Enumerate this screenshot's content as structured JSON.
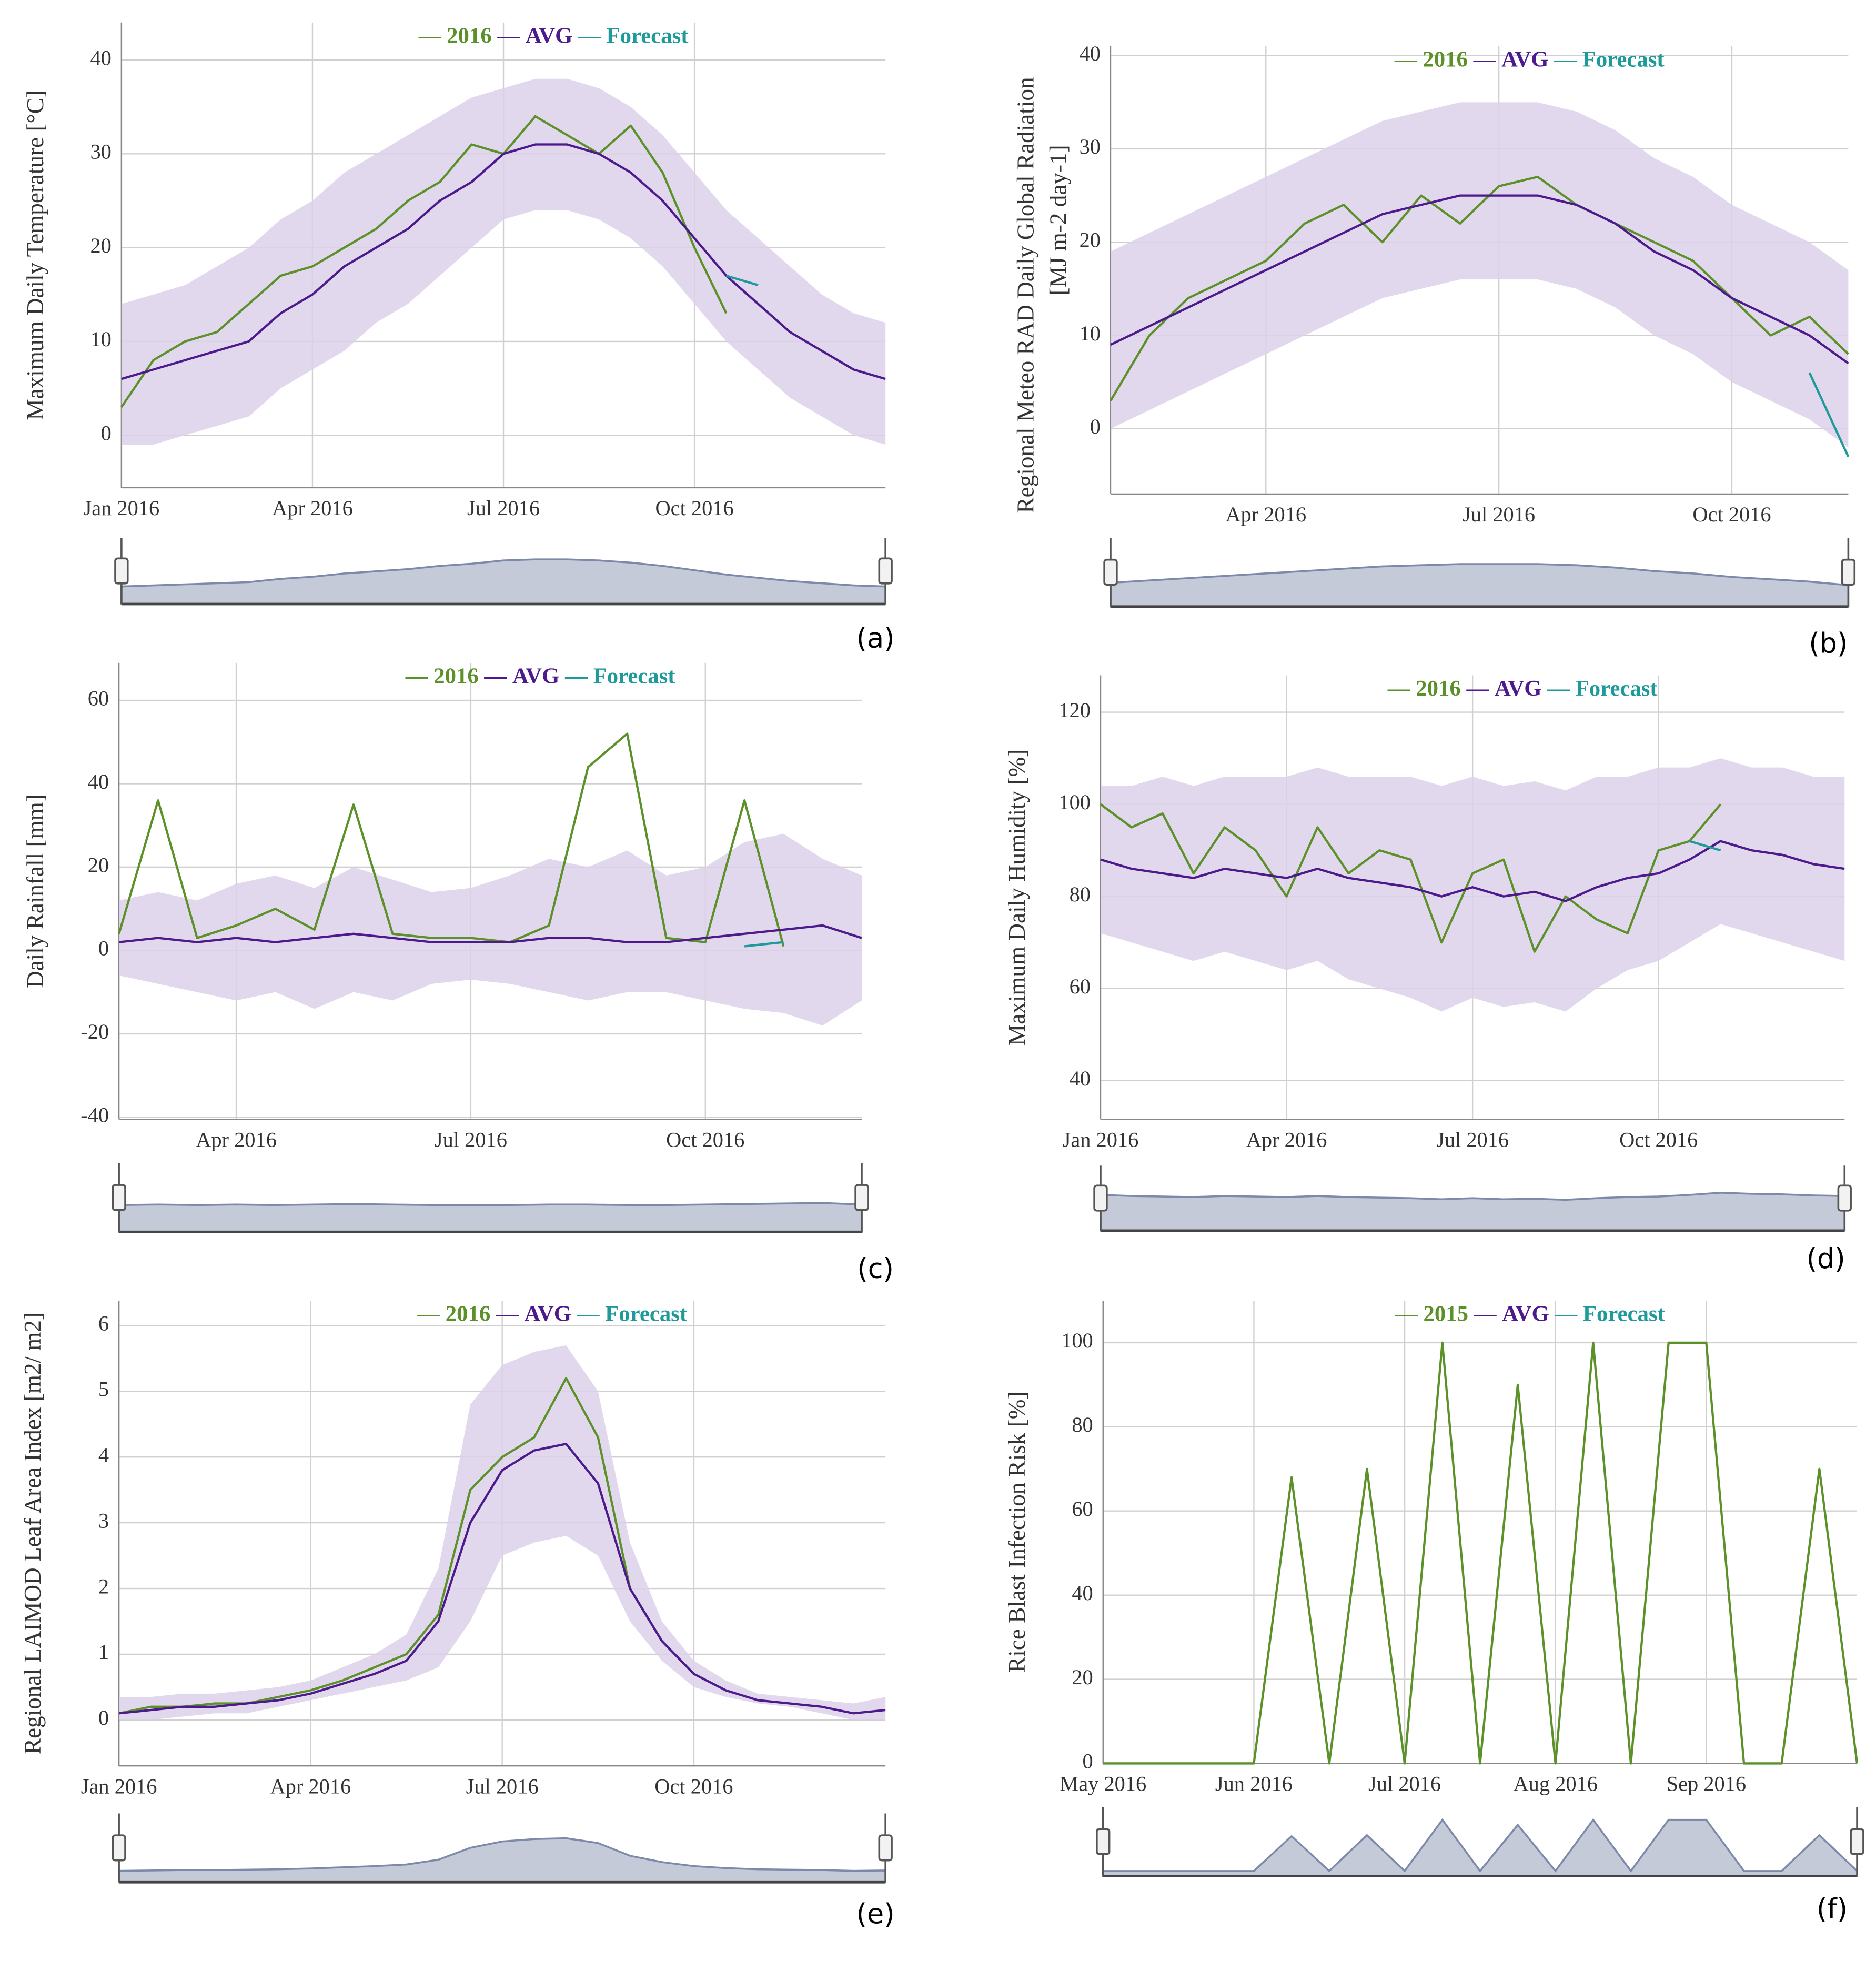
{
  "chart_data": [
    {
      "type": "line",
      "label": "(a)",
      "ylabel": [
        "Maximum Daily Temperature [°C]"
      ],
      "categories": [
        "Jan 2016",
        null,
        null,
        null,
        null,
        null,
        "Apr 2016",
        null,
        null,
        null,
        null,
        null,
        "Jul 2016",
        null,
        null,
        null,
        null,
        null,
        "Oct 2016",
        null,
        null,
        null,
        null,
        null,
        null
      ],
      "ylim": [
        -5.6,
        44
      ],
      "yticks": [
        0,
        10,
        20,
        30,
        40
      ],
      "grid": true,
      "band": {
        "color": "#ddd1ea",
        "low": [
          -1,
          -1,
          0,
          1,
          2,
          5,
          7,
          9,
          12,
          14,
          17,
          20,
          23,
          24,
          24,
          23,
          21,
          18,
          14,
          10,
          7,
          4,
          2,
          0,
          -1
        ],
        "high": [
          14,
          15,
          16,
          18,
          20,
          23,
          25,
          28,
          30,
          32,
          34,
          36,
          37,
          38,
          38,
          37,
          35,
          32,
          28,
          24,
          21,
          18,
          15,
          13,
          12
        ]
      },
      "series": [
        {
          "name": "2016",
          "color": "#5b9128",
          "values": [
            3,
            8,
            10,
            11,
            14,
            17,
            18,
            20,
            22,
            25,
            27,
            31,
            30,
            34,
            32,
            30,
            33,
            28,
            20,
            13,
            null,
            null,
            null,
            null,
            null
          ]
        },
        {
          "name": "AVG",
          "color": "#4c1a8c",
          "values": [
            6,
            7,
            8,
            9,
            10,
            13,
            15,
            18,
            20,
            22,
            25,
            27,
            30,
            31,
            31,
            30,
            28,
            25,
            21,
            17,
            14,
            11,
            9,
            7,
            6
          ]
        },
        {
          "name": "Forecast",
          "color": "#1e9a9a",
          "values": [
            null,
            null,
            null,
            null,
            null,
            null,
            null,
            null,
            null,
            null,
            null,
            null,
            null,
            null,
            null,
            null,
            null,
            null,
            null,
            17,
            16,
            null,
            null,
            null,
            null
          ]
        }
      ]
    },
    {
      "type": "line",
      "label": "(b)",
      "ylabel": [
        "Regional Meteo RAD Daily Global Radiation",
        "[MJ m-2 day-1]"
      ],
      "categories": [
        null,
        null,
        null,
        null,
        "Apr 2016",
        null,
        null,
        null,
        null,
        null,
        "Jul 2016",
        null,
        null,
        null,
        null,
        null,
        "Oct 2016",
        null,
        null,
        null
      ],
      "ylim": [
        -7,
        41
      ],
      "yticks": [
        0,
        10,
        20,
        30,
        40
      ],
      "grid": true,
      "band": {
        "color": "#ddd1ea",
        "low": [
          0,
          2,
          4,
          6,
          8,
          10,
          12,
          14,
          15,
          16,
          16,
          16,
          15,
          13,
          10,
          8,
          5,
          3,
          1,
          -2
        ],
        "high": [
          19,
          21,
          23,
          25,
          27,
          29,
          31,
          33,
          34,
          35,
          35,
          35,
          34,
          32,
          29,
          27,
          24,
          22,
          20,
          17
        ]
      },
      "series": [
        {
          "name": "2016",
          "color": "#5b9128",
          "values": [
            3,
            10,
            14,
            16,
            18,
            22,
            24,
            20,
            25,
            22,
            26,
            27,
            24,
            22,
            20,
            18,
            14,
            10,
            12,
            8
          ]
        },
        {
          "name": "AVG",
          "color": "#4c1a8c",
          "values": [
            9,
            11,
            13,
            15,
            17,
            19,
            21,
            23,
            24,
            25,
            25,
            25,
            24,
            22,
            19,
            17,
            14,
            12,
            10,
            7
          ]
        },
        {
          "name": "Forecast",
          "color": "#1e9a9a",
          "values": [
            null,
            null,
            null,
            null,
            null,
            null,
            null,
            null,
            null,
            null,
            null,
            null,
            null,
            null,
            null,
            null,
            null,
            null,
            6,
            -3
          ]
        }
      ]
    },
    {
      "type": "line",
      "label": "(c)",
      "ylabel": [
        "Daily Rainfall [mm]"
      ],
      "categories": [
        null,
        null,
        null,
        "Apr 2016",
        null,
        null,
        null,
        null,
        null,
        "Jul 2016",
        null,
        null,
        null,
        null,
        null,
        "Oct 2016",
        null,
        null,
        null,
        null
      ],
      "ylim": [
        -40.5,
        69
      ],
      "yticks": [
        -40,
        -20,
        0,
        20,
        40,
        60
      ],
      "grid": true,
      "band": {
        "color": "#ddd1ea",
        "low": [
          -6,
          -8,
          -10,
          -12,
          -10,
          -14,
          -10,
          -12,
          -8,
          -7,
          -8,
          -10,
          -12,
          -10,
          -10,
          -12,
          -14,
          -15,
          -18,
          -12
        ],
        "high": [
          12,
          14,
          12,
          16,
          18,
          15,
          20,
          17,
          14,
          15,
          18,
          22,
          20,
          24,
          18,
          20,
          26,
          28,
          22,
          18
        ]
      },
      "series": [
        {
          "name": "2016",
          "color": "#5b9128",
          "values": [
            4,
            36,
            3,
            6,
            10,
            5,
            35,
            4,
            3,
            3,
            2,
            6,
            44,
            52,
            3,
            2,
            36,
            1,
            null,
            null
          ]
        },
        {
          "name": "AVG",
          "color": "#4c1a8c",
          "values": [
            2,
            3,
            2,
            3,
            2,
            3,
            4,
            3,
            2,
            2,
            2,
            3,
            3,
            2,
            2,
            3,
            4,
            5,
            6,
            3
          ]
        },
        {
          "name": "Forecast",
          "color": "#1e9a9a",
          "values": [
            null,
            null,
            null,
            null,
            null,
            null,
            null,
            null,
            null,
            null,
            null,
            null,
            null,
            null,
            null,
            null,
            1,
            2,
            null,
            null
          ]
        }
      ]
    },
    {
      "type": "line",
      "label": "(d)",
      "ylabel": [
        "Maximum Daily Humidity [%]"
      ],
      "categories": [
        "Jan 2016",
        null,
        null,
        null,
        null,
        null,
        "Apr 2016",
        null,
        null,
        null,
        null,
        null,
        "Jul 2016",
        null,
        null,
        null,
        null,
        null,
        "Oct 2016",
        null,
        null,
        null,
        null,
        null,
        null
      ],
      "ylim": [
        31.6,
        128
      ],
      "yticks": [
        40,
        60,
        80,
        100,
        120
      ],
      "grid": true,
      "band": {
        "color": "#ddd1ea",
        "low": [
          72,
          70,
          68,
          66,
          68,
          66,
          64,
          66,
          62,
          60,
          58,
          55,
          58,
          56,
          57,
          55,
          60,
          64,
          66,
          70,
          74,
          72,
          70,
          68,
          66
        ],
        "high": [
          104,
          104,
          106,
          104,
          106,
          106,
          106,
          108,
          106,
          106,
          106,
          104,
          106,
          104,
          105,
          103,
          106,
          106,
          108,
          108,
          110,
          108,
          108,
          106,
          106
        ]
      },
      "series": [
        {
          "name": "2016",
          "color": "#5b9128",
          "values": [
            100,
            95,
            98,
            85,
            95,
            90,
            80,
            95,
            85,
            90,
            88,
            70,
            85,
            88,
            68,
            80,
            75,
            72,
            90,
            92,
            100,
            null,
            null,
            null,
            null
          ]
        },
        {
          "name": "AVG",
          "color": "#4c1a8c",
          "values": [
            88,
            86,
            85,
            84,
            86,
            85,
            84,
            86,
            84,
            83,
            82,
            80,
            82,
            80,
            81,
            79,
            82,
            84,
            85,
            88,
            92,
            90,
            89,
            87,
            86
          ]
        },
        {
          "name": "Forecast",
          "color": "#1e9a9a",
          "values": [
            null,
            null,
            null,
            null,
            null,
            null,
            null,
            null,
            null,
            null,
            null,
            null,
            null,
            null,
            null,
            null,
            null,
            null,
            null,
            92,
            90,
            null,
            null,
            null,
            null
          ]
        }
      ]
    },
    {
      "type": "line",
      "label": "(e)",
      "ylabel": [
        "Regional LAIMOD Leaf Area Index [m2/ m2]"
      ],
      "categories": [
        "Jan 2016",
        null,
        null,
        null,
        null,
        null,
        "Apr 2016",
        null,
        null,
        null,
        null,
        null,
        "Jul 2016",
        null,
        null,
        null,
        null,
        null,
        "Oct 2016",
        null,
        null,
        null,
        null,
        null,
        null
      ],
      "ylim": [
        -0.7,
        6.38
      ],
      "yticks": [
        0,
        1,
        2,
        3,
        4,
        5,
        6
      ],
      "grid": true,
      "band": {
        "color": "#ddd1ea",
        "low": [
          0,
          0,
          0.05,
          0.1,
          0.1,
          0.2,
          0.3,
          0.4,
          0.5,
          0.6,
          0.8,
          1.5,
          2.5,
          2.7,
          2.8,
          2.5,
          1.5,
          0.9,
          0.5,
          0.35,
          0.25,
          0.2,
          0.1,
          0,
          0
        ],
        "high": [
          0.35,
          0.35,
          0.4,
          0.4,
          0.45,
          0.5,
          0.6,
          0.8,
          1.0,
          1.3,
          2.3,
          4.8,
          5.4,
          5.6,
          5.7,
          5.0,
          2.7,
          1.5,
          0.9,
          0.6,
          0.4,
          0.35,
          0.3,
          0.25,
          0.35
        ]
      },
      "series": [
        {
          "name": "2016",
          "color": "#5b9128",
          "values": [
            0.1,
            0.2,
            0.2,
            0.25,
            0.25,
            0.35,
            0.45,
            0.6,
            0.8,
            1.0,
            1.6,
            3.5,
            4.0,
            4.3,
            5.2,
            4.3,
            2.0,
            1.2,
            0.7,
            null,
            null,
            null,
            null,
            null,
            null
          ]
        },
        {
          "name": "AVG",
          "color": "#4c1a8c",
          "values": [
            0.1,
            0.15,
            0.2,
            0.2,
            0.25,
            0.3,
            0.4,
            0.55,
            0.7,
            0.9,
            1.5,
            3.0,
            3.8,
            4.1,
            4.2,
            3.6,
            2.0,
            1.2,
            0.7,
            0.45,
            0.3,
            0.25,
            0.2,
            0.1,
            0.15
          ]
        },
        {
          "name": "Forecast",
          "color": "#1e9a9a",
          "values": [
            null,
            null,
            null,
            null,
            null,
            null,
            null,
            null,
            null,
            null,
            null,
            null,
            null,
            null,
            null,
            null,
            null,
            null,
            null,
            null,
            null,
            null,
            null,
            null,
            null
          ]
        }
      ]
    },
    {
      "type": "line",
      "label": "(f)",
      "ylabel": [
        "Rice Blast Infection Risk [%]"
      ],
      "categories": [
        "May 2016",
        null,
        null,
        null,
        "Jun 2016",
        null,
        null,
        null,
        "Jul 2016",
        null,
        null,
        null,
        "Aug 2016",
        null,
        null,
        null,
        "Sep 2016",
        null,
        null,
        null,
        null
      ],
      "ylim": [
        0,
        110
      ],
      "yticks": [
        0,
        20,
        40,
        60,
        80,
        100
      ],
      "grid": true,
      "series": [
        {
          "name": "2015",
          "color": "#5b9128",
          "values": [
            0,
            0,
            0,
            0,
            0,
            68,
            0,
            70,
            0,
            100,
            0,
            90,
            0,
            100,
            0,
            100,
            100,
            0,
            0,
            70,
            0
          ]
        },
        {
          "name": "AVG",
          "color": "#4c1a8c",
          "values": [
            null,
            null,
            null,
            null,
            null,
            null,
            null,
            null,
            null,
            null,
            null,
            null,
            null,
            null,
            null,
            null,
            null,
            null,
            null,
            null,
            null
          ]
        },
        {
          "name": "Forecast",
          "color": "#1e9a9a",
          "values": [
            null,
            null,
            null,
            null,
            null,
            null,
            null,
            null,
            null,
            null,
            null,
            null,
            null,
            null,
            null,
            null,
            null,
            null,
            null,
            null,
            null
          ]
        }
      ]
    }
  ]
}
